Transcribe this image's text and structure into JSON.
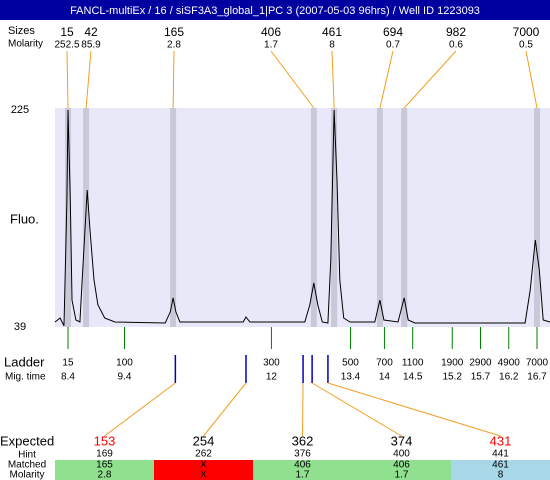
{
  "title": "FANCL-multiEx / 16 / siSF3A3_global_1|PC 3 (2007-05-03 96hrs) / Well ID 1223093",
  "peaks": {
    "size_label": "Sizes",
    "molarity_label": "Molarity",
    "sizes": [
      15,
      42,
      165,
      406,
      461,
      694,
      982,
      7000
    ],
    "molarity": [
      252.5,
      85.9,
      2.8,
      1.7,
      8,
      0.7,
      0.6,
      0.5
    ],
    "mig_times": [
      8.4,
      8.72,
      10.26,
      12.75,
      13.11,
      13.92,
      14.35,
      16.7
    ]
  },
  "chart_data": {
    "type": "line",
    "y_label": "Fluo.",
    "color": "#000000",
    "xlim": [
      8.17,
      16.93
    ],
    "ylim": [
      39,
      225
    ],
    "yticks": [
      39,
      225
    ],
    "x": [
      8.17,
      8.26,
      8.33,
      8.38,
      8.4,
      8.44,
      8.47,
      8.54,
      8.61,
      8.67,
      8.74,
      8.79,
      8.86,
      8.93,
      9.05,
      9.23,
      10.12,
      10.21,
      10.26,
      10.31,
      10.38,
      11.5,
      11.55,
      11.62,
      12.59,
      12.68,
      12.75,
      12.82,
      12.9,
      13.0,
      13.05,
      13.11,
      13.16,
      13.21,
      13.28,
      13.39,
      13.83,
      13.92,
      13.99,
      14.24,
      14.35,
      14.42,
      14.54,
      16.49,
      16.58,
      16.67,
      16.74,
      16.81,
      16.93
    ],
    "values": [
      43.3,
      46.7,
      39.9,
      147.8,
      225,
      147.8,
      62.1,
      45,
      43.3,
      96.4,
      156.4,
      122.1,
      79.3,
      57.9,
      46.7,
      43.3,
      42.4,
      51.9,
      63.9,
      51.9,
      43.3,
      43.3,
      47.6,
      43.3,
      43.3,
      57.9,
      76.7,
      57.9,
      43.3,
      42.4,
      96.4,
      225,
      165,
      79.3,
      46.7,
      43.3,
      43.3,
      62.1,
      45,
      43.3,
      63.9,
      45,
      42.4,
      42.4,
      70.7,
      113.6,
      87.9,
      45,
      43.3
    ]
  },
  "ladder": {
    "label": "Ladder",
    "time_label": "Mig. time",
    "sizes": [
      15,
      100,
      300,
      500,
      700,
      1100,
      1900,
      2900,
      4900,
      7000
    ],
    "mig_times": [
      8.4,
      9.4,
      12,
      13.4,
      14,
      14.5,
      15.2,
      15.7,
      16.2,
      16.7
    ]
  },
  "expected": {
    "label": "Expected",
    "hint_label": "Hint",
    "matched_label": "Matched",
    "molarity_label": "Molarity",
    "values": [
      153,
      254,
      362,
      374,
      431
    ],
    "colors": [
      "#ff0000",
      "#000000",
      "#000000",
      "#000000",
      "#ff0000"
    ],
    "hints": [
      169,
      262,
      376,
      400,
      441
    ],
    "matched": [
      165,
      "X",
      406,
      406,
      461
    ],
    "molarity": [
      2.8,
      "X",
      1.7,
      1.7,
      8
    ],
    "row_colors": [
      "#90e090",
      "#ff0000",
      "#90e090",
      "#90e090",
      "#a8d8e8"
    ],
    "mig_times": [
      10.3,
      11.55,
      12.56,
      12.72,
      13.0
    ]
  }
}
